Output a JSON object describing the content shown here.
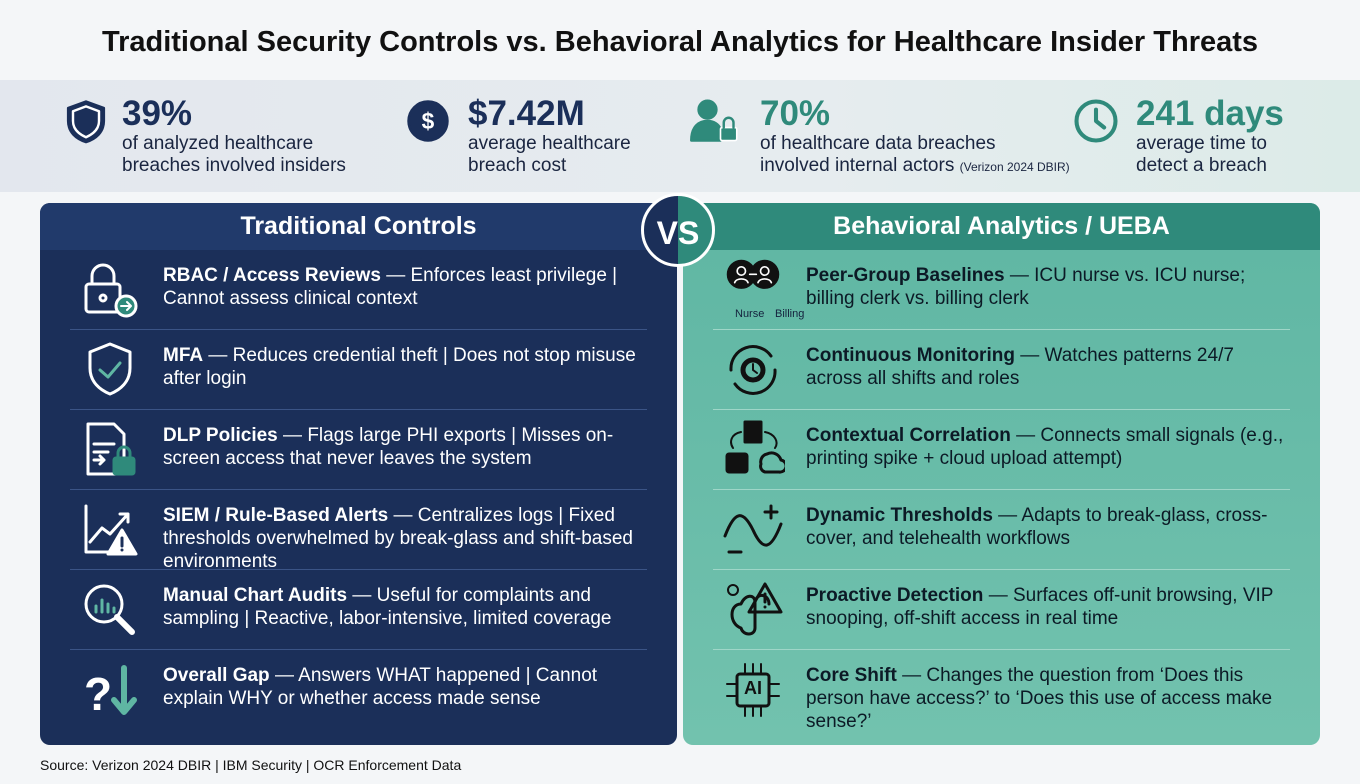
{
  "title": "Traditional Security Controls vs. Behavioral Analytics for Healthcare Insider Threats",
  "stats": [
    {
      "value": "39%",
      "lines": [
        "of analyzed healthcare",
        "breaches involved insiders"
      ]
    },
    {
      "value": "$7.42M",
      "lines": [
        "average healthcare",
        "breach cost"
      ]
    },
    {
      "value": "70%",
      "lines": [
        "of healthcare data breaches",
        "involved internal actors"
      ],
      "note": "(Verizon 2024 DBIR)"
    },
    {
      "value": "241 days",
      "lines": [
        "average time to",
        "detect a breach"
      ]
    }
  ],
  "vs": "VS",
  "left": {
    "title": "Traditional Controls",
    "rows": [
      {
        "name": "RBAC / Access Reviews",
        "text": "— Enforces least privilege | Cannot assess clinical context"
      },
      {
        "name": "MFA",
        "text": "— Reduces credential theft | Does not stop misuse after login"
      },
      {
        "name": "DLP Policies",
        "text": "— Flags large PHI exports | Misses on-screen access that never leaves the system"
      },
      {
        "name": "SIEM / Rule-Based Alerts",
        "text": "— Centralizes logs | Fixed thresholds overwhelmed by break-glass and shift-based environments"
      },
      {
        "name": "Manual Chart Audits",
        "text": "— Useful for complaints and sampling | Reactive, labor-intensive, limited coverage"
      },
      {
        "name": "Overall Gap",
        "text": "— Answers WHAT happened | Cannot explain WHY or whether access made sense"
      }
    ]
  },
  "right": {
    "title": "Behavioral Analytics / UEBA",
    "icon_labels": [
      "Nurse",
      "Billing",
      "AI"
    ],
    "rows": [
      {
        "name": "Peer-Group Baselines",
        "text": "— ICU nurse vs. ICU nurse; billing clerk vs. billing clerk"
      },
      {
        "name": "Continuous Monitoring",
        "text": "— Watches patterns 24/7 across all shifts and roles"
      },
      {
        "name": "Contextual Correlation",
        "text": "— Connects small signals (e.g., printing spike + cloud upload attempt)"
      },
      {
        "name": "Dynamic Thresholds",
        "text": "— Adapts to break-glass, cross-cover, and telehealth workflows"
      },
      {
        "name": "Proactive Detection",
        "text": "— Surfaces off-unit browsing, VIP snooping, off-shift access in real time"
      },
      {
        "name": "Core Shift",
        "text": "— Changes the question from ‘Does this person have access?’ to ‘Does this use of access make sense?’"
      }
    ]
  },
  "source": "Source: Verizon 2024 DBIR | IBM Security | OCR Enforcement Data"
}
